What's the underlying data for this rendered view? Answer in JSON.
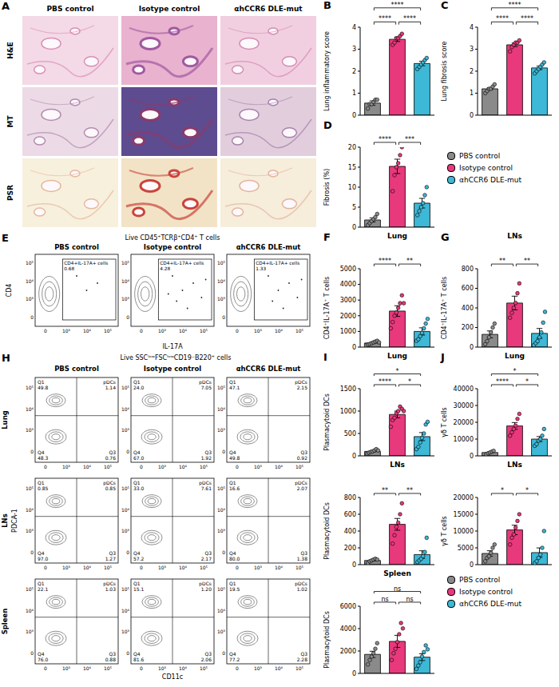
{
  "figure": {
    "histology": {
      "panel": "A",
      "columns": [
        "PBS control",
        "Isotype control",
        "αhCCR6 DLE-mut"
      ],
      "rows": [
        "H&E",
        "MT",
        "PSR"
      ]
    },
    "flow_il17": {
      "panel": "E",
      "gate": "Live CD45⁺TCRβ⁺CD4⁺ T cells",
      "columns": [
        "PBS control",
        "Isotype control",
        "αhCCR6 DLE-mut"
      ],
      "x_label": "IL-17A",
      "y_label": "CD4",
      "gate_label": "CD4+IL-17A+ cells",
      "gate_values": [
        "0.68",
        "4.28",
        "1.33"
      ],
      "x_ticks": [
        "0",
        "10³",
        "10⁴",
        "10⁵"
      ],
      "y_ticks": [
        "0",
        "10³",
        "10⁴",
        "10⁵"
      ]
    },
    "flow_pdc": {
      "panel": "H",
      "gate": "Live SSCˡᵒʷFSCˡᵒʷCD19⁻B220⁺ cells",
      "columns": [
        "PBS control",
        "Isotype control",
        "αhCCR6 DLE-mut"
      ],
      "rows": [
        "Lung",
        "LNs",
        "Spleen"
      ],
      "x_label": "CD11c",
      "y_label": "PDCA-1",
      "quadrant_labels": [
        "Q1",
        "pDCs",
        "Q4",
        "Q3"
      ],
      "quadrants": [
        [
          [
            "49.8",
            "1.14",
            "48.3",
            "0.76"
          ],
          [
            "24.0",
            "7.05",
            "67.0",
            "1.92"
          ],
          [
            "47.1",
            "2.15",
            "49.8",
            "0.92"
          ]
        ],
        [
          [
            "0.85",
            "0.85",
            "97.0",
            "1.27"
          ],
          [
            "33.0",
            "7.61",
            "57.2",
            "2.17"
          ],
          [
            "16.6",
            "2.07",
            "80.0",
            "1.38"
          ]
        ],
        [
          [
            "22.1",
            "1.03",
            "76.0",
            "0.88"
          ],
          [
            "15.1",
            "1.20",
            "81.6",
            "2.06"
          ],
          [
            "19.5",
            "1.02",
            "77.2",
            "2.28"
          ]
        ]
      ],
      "x_ticks": [
        "0",
        "10³",
        "10⁴",
        "10⁵"
      ],
      "y_ticks": [
        "0",
        "10³",
        "10⁴",
        "10⁵"
      ]
    }
  },
  "chart_data": [
    {
      "panel": "B",
      "type": "bar",
      "ylabel": "Lung inflammatory score",
      "categories": [
        "PBS control",
        "Isotype control",
        "αhCCR6 DLE-mut"
      ],
      "colors": [
        "#8a8a8a",
        "#e8397c",
        "#3db8d6"
      ],
      "values": [
        0.55,
        3.45,
        2.35
      ],
      "errors": [
        0.1,
        0.1,
        0.1
      ],
      "points": [
        [
          0.3,
          0.5,
          0.5,
          0.6,
          0.7,
          0.7
        ],
        [
          3.2,
          3.3,
          3.5,
          3.5,
          3.6,
          3.7
        ],
        [
          2.1,
          2.2,
          2.3,
          2.4,
          2.5,
          2.6
        ]
      ],
      "ylim": [
        0,
        4
      ],
      "yticks": [
        0,
        1,
        2,
        3,
        4
      ],
      "significance": [
        {
          "from": 0,
          "to": 1,
          "label": "****"
        },
        {
          "from": 0,
          "to": 2,
          "label": "****"
        },
        {
          "from": 1,
          "to": 2,
          "label": "****"
        }
      ],
      "tick_labels": "y"
    },
    {
      "panel": "C",
      "type": "bar",
      "ylabel": "Lung fibrosis score",
      "categories": [
        "PBS control",
        "Isotype control",
        "αhCCR6 DLE-mut"
      ],
      "colors": [
        "#8a8a8a",
        "#e8397c",
        "#3db8d6"
      ],
      "values": [
        1.2,
        3.2,
        2.15
      ],
      "errors": [
        0.05,
        0.08,
        0.08
      ],
      "points": [
        [
          1.0,
          1.1,
          1.2,
          1.2,
          1.3,
          1.4
        ],
        [
          2.9,
          3.1,
          3.2,
          3.3,
          3.3,
          3.4
        ],
        [
          1.9,
          2.0,
          2.1,
          2.2,
          2.3,
          2.4
        ]
      ],
      "ylim": [
        0,
        4
      ],
      "yticks": [
        0,
        1,
        2,
        3,
        4
      ],
      "significance": [
        {
          "from": 0,
          "to": 1,
          "label": "****"
        },
        {
          "from": 0,
          "to": 2,
          "label": "****"
        },
        {
          "from": 1,
          "to": 2,
          "label": "****"
        }
      ],
      "tick_labels": "y"
    },
    {
      "panel": "D",
      "type": "bar",
      "ylabel": "Fibrosis (%)",
      "categories": [
        "PBS control",
        "Isotype control",
        "αhCCR6 DLE-mut"
      ],
      "colors": [
        "#8a8a8a",
        "#e8397c",
        "#3db8d6"
      ],
      "values": [
        1.8,
        15.2,
        6.0
      ],
      "errors": [
        0.5,
        1.8,
        1.2
      ],
      "points": [
        [
          0.5,
          1.0,
          1.5,
          2.0,
          2.5,
          3.3
        ],
        [
          9,
          13,
          15,
          16,
          18,
          20
        ],
        [
          3,
          4,
          5,
          6,
          8,
          10
        ]
      ],
      "ylim": [
        0,
        20
      ],
      "yticks": [
        0,
        5,
        10,
        15,
        20
      ],
      "significance": [
        {
          "from": 0,
          "to": 1,
          "label": "****"
        },
        {
          "from": 1,
          "to": 2,
          "label": "***"
        }
      ],
      "tick_labels": "y",
      "legend": "right"
    },
    {
      "panel": "F",
      "type": "bar",
      "title": "Lung",
      "ylabel": "CD4⁺IL-17A⁺ T cells",
      "categories": [
        "PBS control",
        "Isotype control",
        "αhCCR6 DLE-mut"
      ],
      "colors": [
        "#8a8a8a",
        "#e8397c",
        "#3db8d6"
      ],
      "values": [
        260,
        2300,
        1000
      ],
      "errors": [
        40,
        340,
        230
      ],
      "points": [
        [
          120,
          160,
          200,
          250,
          300,
          350,
          400,
          300
        ],
        [
          1200,
          1600,
          2000,
          2200,
          2500,
          2800,
          3300,
          2800
        ],
        [
          400,
          500,
          700,
          900,
          1200,
          1500,
          1800
        ]
      ],
      "ylim": [
        0,
        5000
      ],
      "yticks": [
        0,
        1000,
        2000,
        3000,
        4000,
        5000
      ],
      "significance": [
        {
          "from": 0,
          "to": 1,
          "label": "****"
        },
        {
          "from": 1,
          "to": 2,
          "label": "**"
        }
      ],
      "tick_labels": "y"
    },
    {
      "panel": "G",
      "type": "bar",
      "title": "LNs",
      "ylabel": "CD4⁺IL-17A⁺ T cells",
      "categories": [
        "PBS control",
        "Isotype control",
        "αhCCR6 DLE-mut"
      ],
      "colors": [
        "#8a8a8a",
        "#e8397c",
        "#3db8d6"
      ],
      "values": [
        130,
        450,
        140
      ],
      "errors": [
        35,
        70,
        50
      ],
      "points": [
        [
          30,
          60,
          100,
          150,
          200,
          240
        ],
        [
          300,
          350,
          400,
          450,
          550,
          650
        ],
        [
          20,
          40,
          60,
          100,
          150,
          250,
          360
        ]
      ],
      "ylim": [
        0,
        800
      ],
      "yticks": [
        0,
        200,
        400,
        600,
        800
      ],
      "significance": [
        {
          "from": 0,
          "to": 1,
          "label": "**"
        },
        {
          "from": 1,
          "to": 2,
          "label": "**"
        }
      ],
      "tick_labels": "y"
    },
    {
      "panel": "I",
      "type": "bar",
      "title": "Lung",
      "ylabel": "Plasmacytoid DCs",
      "categories": [
        "PBS control",
        "Isotype control",
        "αhCCR6 DLE-mut"
      ],
      "colors": [
        "#8a8a8a",
        "#e8397c",
        "#3db8d6"
      ],
      "values": [
        100,
        925,
        430
      ],
      "errors": [
        15,
        75,
        90
      ],
      "points": [
        [
          50,
          70,
          90,
          100,
          120,
          150,
          120
        ],
        [
          650,
          800,
          850,
          950,
          1000,
          1100,
          1050,
          1000
        ],
        [
          150,
          200,
          300,
          400,
          500,
          700,
          760
        ]
      ],
      "ylim": [
        0,
        1500
      ],
      "yticks": [
        0,
        500,
        1000,
        1500
      ],
      "significance": [
        {
          "from": 0,
          "to": 1,
          "label": "****"
        },
        {
          "from": 0,
          "to": 2,
          "label": "*"
        },
        {
          "from": 1,
          "to": 2,
          "label": "*"
        }
      ],
      "tick_labels": "y"
    },
    {
      "type": "bar",
      "title": "LNs",
      "ylabel": "Plasmacytoid DCs",
      "categories": [
        "PBS control",
        "Isotype control",
        "αhCCR6 DLE-mut"
      ],
      "colors": [
        "#8a8a8a",
        "#e8397c",
        "#3db8d6"
      ],
      "values": [
        50,
        480,
        120
      ],
      "errors": [
        8,
        70,
        45
      ],
      "points": [
        [
          20,
          40,
          50,
          60,
          70,
          60
        ],
        [
          250,
          350,
          450,
          500,
          600,
          730
        ],
        [
          30,
          50,
          70,
          100,
          150,
          320
        ]
      ],
      "ylim": [
        0,
        800
      ],
      "yticks": [
        0,
        200,
        400,
        600,
        800
      ],
      "significance": [
        {
          "from": 0,
          "to": 1,
          "label": "**"
        },
        {
          "from": 1,
          "to": 2,
          "label": "**"
        }
      ],
      "tick_labels": "y"
    },
    {
      "type": "bar",
      "title": "Spleen",
      "ylabel": "Plasmacytoid DCs",
      "categories": [
        "PBS control",
        "Isotype control",
        "αhCCR6 DLE-mut"
      ],
      "colors": [
        "#8a8a8a",
        "#e8397c",
        "#3db8d6"
      ],
      "values": [
        1700,
        2860,
        1450
      ],
      "errors": [
        280,
        540,
        300
      ],
      "points": [
        [
          800,
          1200,
          1500,
          1800,
          2200,
          2700
        ],
        [
          1200,
          1800,
          2200,
          2800,
          3500,
          4500,
          4020
        ],
        [
          400,
          700,
          1000,
          1500,
          1900,
          2500,
          2150
        ]
      ],
      "ylim": [
        0,
        6000
      ],
      "yticks": [
        0,
        2000,
        4000,
        6000
      ],
      "significance": [
        {
          "from": 0,
          "to": 1,
          "label": "ns"
        },
        {
          "from": 0,
          "to": 2,
          "label": "ns"
        },
        {
          "from": 1,
          "to": 2,
          "label": "ns"
        }
      ],
      "tick_labels": "y"
    },
    {
      "panel": "J",
      "type": "bar",
      "title": "Lung",
      "ylabel": "γδ T cells",
      "categories": [
        "PBS control",
        "Isotype control",
        "αhCCR6 DLE-mut"
      ],
      "colors": [
        "#8a8a8a",
        "#e8397c",
        "#3db8d6"
      ],
      "values": [
        2000,
        17830,
        10000
      ],
      "errors": [
        300,
        2000,
        1500
      ],
      "points": [
        [
          1000,
          1500,
          2000,
          2500,
          3000
        ],
        [
          12000,
          14000,
          16000,
          18000,
          22000,
          25000
        ],
        [
          6000,
          7000,
          9000,
          10000,
          12000,
          16000
        ]
      ],
      "ylim": [
        0,
        40000
      ],
      "yticks": [
        0,
        10000,
        20000,
        30000,
        40000
      ],
      "significance": [
        {
          "from": 0,
          "to": 1,
          "label": "****"
        },
        {
          "from": 0,
          "to": 2,
          "label": "*"
        },
        {
          "from": 1,
          "to": 2,
          "label": "*"
        }
      ],
      "tick_labels": "y"
    },
    {
      "type": "bar",
      "title": "LNs",
      "ylabel": "γδ T cells",
      "categories": [
        "PBS control",
        "Isotype control",
        "αhCCR6 DLE-mut"
      ],
      "colors": [
        "#8a8a8a",
        "#e8397c",
        "#3db8d6"
      ],
      "values": [
        3330,
        10330,
        3580
      ],
      "errors": [
        800,
        1400,
        1400
      ],
      "points": [
        [
          1000,
          2000,
          2500,
          3500,
          5000,
          6000
        ],
        [
          6000,
          8000,
          9000,
          11000,
          13000,
          15000
        ],
        [
          500,
          1000,
          2000,
          3000,
          5000,
          10000
        ]
      ],
      "ylim": [
        0,
        20000
      ],
      "yticks": [
        0,
        5000,
        10000,
        15000,
        20000
      ],
      "significance": [
        {
          "from": 0,
          "to": 1,
          "label": "*"
        },
        {
          "from": 1,
          "to": 2,
          "label": "*"
        }
      ],
      "tick_labels": "y",
      "legend": "bottom"
    }
  ]
}
